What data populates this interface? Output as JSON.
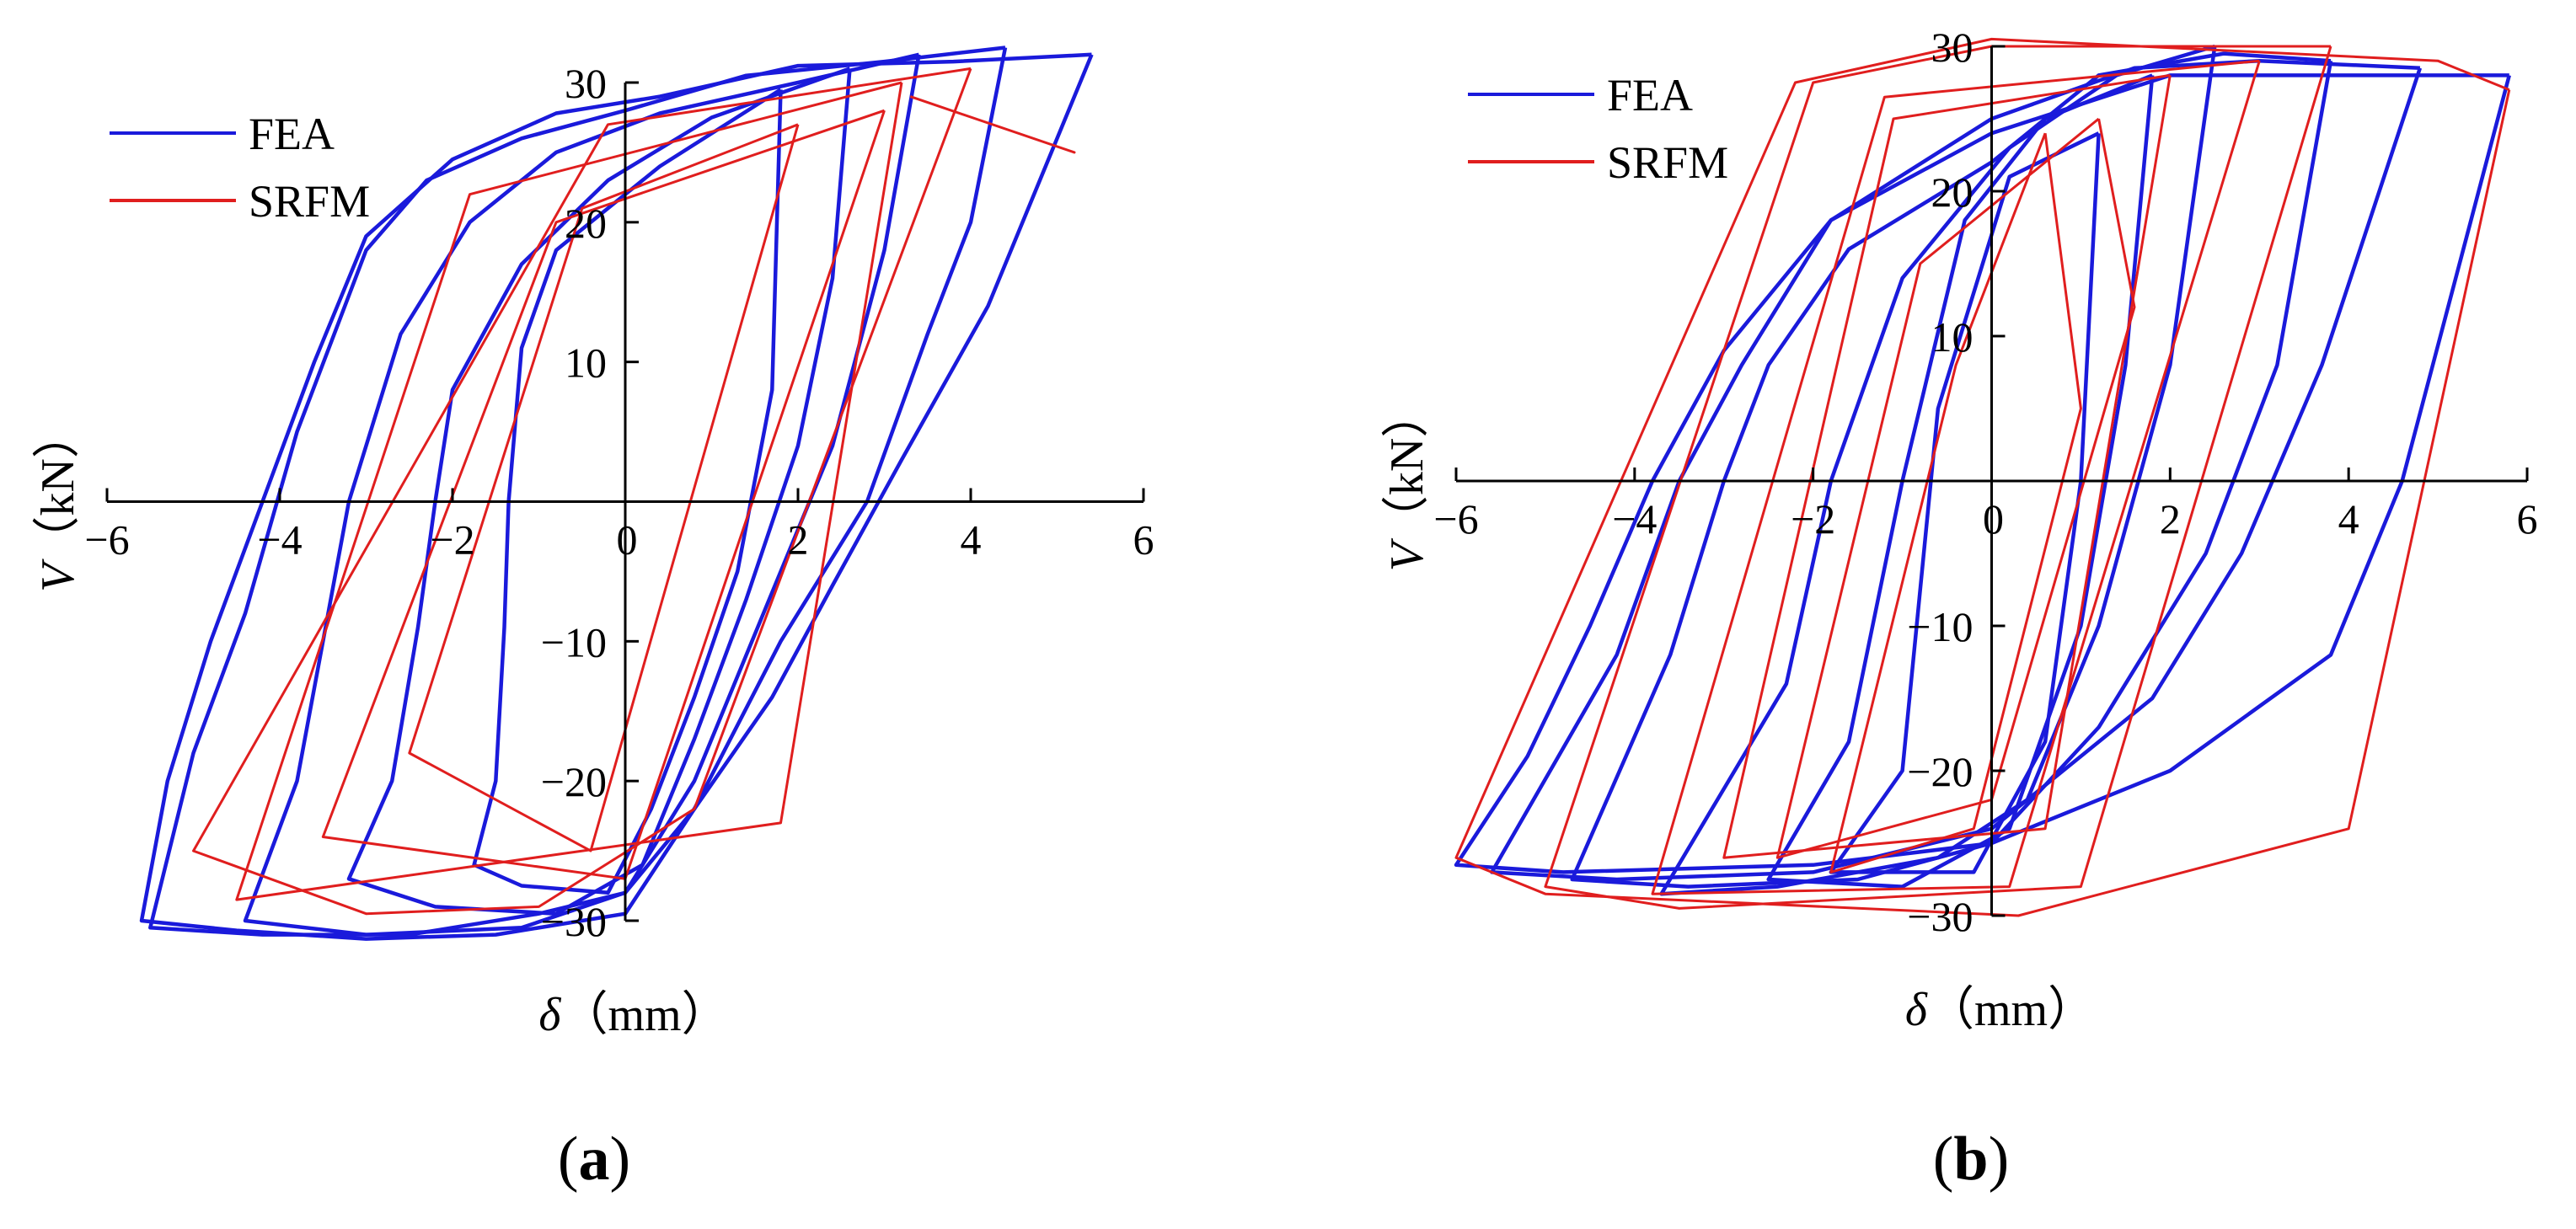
{
  "colors": {
    "FEA": "#1a1adb",
    "SRFM": "#e01e1e",
    "axis": "#000000"
  },
  "chart_data": [
    {
      "type": "line",
      "panel": "(a)",
      "panel_letter": "a",
      "xlabel_symbol": "δ",
      "xlabel_unit": "（mm）",
      "ylabel_symbol": "V",
      "ylabel_unit": "（kN）",
      "xlim": [
        -6,
        6
      ],
      "ylim": [
        -30,
        30
      ],
      "xticks": [
        -6,
        -4,
        -2,
        0,
        2,
        4,
        6
      ],
      "yticks": [
        -30,
        -20,
        -10,
        0,
        10,
        20,
        30
      ],
      "grid": false,
      "legend_position": "top-left",
      "legend": [
        "FEA",
        "SRFM"
      ],
      "series": [
        {
          "name": "FEA",
          "loops": [
            [
              [
                1.8,
                29.5
              ],
              [
                0.4,
                24
              ],
              [
                -0.8,
                18
              ],
              [
                -1.2,
                11
              ],
              [
                -1.35,
                0
              ],
              [
                -1.4,
                -9
              ],
              [
                -1.5,
                -20
              ],
              [
                -1.75,
                -26
              ],
              [
                -1.2,
                -27.5
              ],
              [
                -0.2,
                -28
              ],
              [
                0.3,
                -22
              ],
              [
                0.8,
                -14
              ],
              [
                1.3,
                -5
              ],
              [
                1.7,
                8
              ],
              [
                1.8,
                29.5
              ]
            ],
            [
              [
                2.6,
                31
              ],
              [
                1.0,
                27.5
              ],
              [
                -0.2,
                23
              ],
              [
                -1.2,
                17
              ],
              [
                -2.0,
                8
              ],
              [
                -2.2,
                0
              ],
              [
                -2.4,
                -9
              ],
              [
                -2.7,
                -20
              ],
              [
                -3.2,
                -27
              ],
              [
                -2.2,
                -29
              ],
              [
                -0.8,
                -29.5
              ],
              [
                0.2,
                -26
              ],
              [
                0.8,
                -17
              ],
              [
                1.4,
                -7
              ],
              [
                2.0,
                4
              ],
              [
                2.4,
                16
              ],
              [
                2.6,
                31
              ]
            ],
            [
              [
                3.4,
                32
              ],
              [
                2.0,
                30
              ],
              [
                0.4,
                27.8
              ],
              [
                -0.8,
                25
              ],
              [
                -1.8,
                20
              ],
              [
                -2.6,
                12
              ],
              [
                -3.2,
                0
              ],
              [
                -3.5,
                -10
              ],
              [
                -3.8,
                -20
              ],
              [
                -4.4,
                -30
              ],
              [
                -3.0,
                -31
              ],
              [
                -1.2,
                -30.5
              ],
              [
                0,
                -28
              ],
              [
                0.8,
                -20
              ],
              [
                1.6,
                -8
              ],
              [
                2.4,
                4
              ],
              [
                3.0,
                18
              ],
              [
                3.4,
                32
              ]
            ],
            [
              [
                4.4,
                32.5
              ],
              [
                3.0,
                31.5
              ],
              [
                1.4,
                30.5
              ],
              [
                0,
                28
              ],
              [
                -1.2,
                26
              ],
              [
                -2.3,
                23
              ],
              [
                -3.0,
                18
              ],
              [
                -3.8,
                5
              ],
              [
                -4.4,
                -8
              ],
              [
                -5.0,
                -18
              ],
              [
                -5.5,
                -30.5
              ],
              [
                -4.2,
                -31
              ],
              [
                -2.5,
                -31
              ],
              [
                -1.0,
                -29.5
              ],
              [
                0,
                -28
              ],
              [
                0.8,
                -22
              ],
              [
                1.8,
                -10
              ],
              [
                2.8,
                0
              ],
              [
                3.5,
                12
              ],
              [
                4.0,
                20
              ],
              [
                4.4,
                32.5
              ]
            ],
            [
              [
                5.4,
                32
              ],
              [
                3.8,
                31.5
              ],
              [
                2.0,
                31.2
              ],
              [
                0.4,
                29
              ],
              [
                -0.8,
                27.8
              ],
              [
                -2.0,
                24.5
              ],
              [
                -3.0,
                19
              ],
              [
                -3.6,
                10
              ],
              [
                -4.2,
                0
              ],
              [
                -4.8,
                -10
              ],
              [
                -5.3,
                -20
              ],
              [
                -5.6,
                -30
              ],
              [
                -4.5,
                -30.7
              ],
              [
                -3.0,
                -31.3
              ],
              [
                -1.5,
                -31
              ],
              [
                0,
                -29.5
              ],
              [
                0.8,
                -22
              ],
              [
                1.7,
                -14
              ],
              [
                2.4,
                -6
              ],
              [
                3.2,
                3
              ],
              [
                4.2,
                14
              ],
              [
                5.4,
                32
              ]
            ]
          ]
        },
        {
          "name": "SRFM",
          "loops": [
            [
              [
                2.0,
                27
              ],
              [
                -0.5,
                21
              ],
              [
                -2.5,
                -18
              ],
              [
                -0.4,
                -25
              ],
              [
                2.0,
                27
              ]
            ],
            [
              [
                3.0,
                28
              ],
              [
                -0.8,
                20
              ],
              [
                -3.5,
                -24
              ],
              [
                0,
                -27
              ],
              [
                3.0,
                28
              ]
            ],
            [
              [
                3.2,
                30
              ],
              [
                -1.8,
                22
              ],
              [
                -4.5,
                -28.5
              ],
              [
                1.8,
                -23
              ],
              [
                3.2,
                30
              ]
            ],
            [
              [
                4.0,
                31
              ],
              [
                -0.2,
                27
              ],
              [
                -5.0,
                -25
              ],
              [
                -3.0,
                -29.5
              ],
              [
                -1.0,
                -29
              ],
              [
                0.8,
                -22
              ],
              [
                4.0,
                31
              ]
            ],
            [
              [
                3.3,
                29
              ],
              [
                5.2,
                25
              ],
              [
                3.3,
                29
              ]
            ]
          ]
        }
      ]
    },
    {
      "type": "line",
      "panel": "(b)",
      "panel_letter": "b",
      "xlabel_symbol": "δ",
      "xlabel_unit": "（mm）",
      "ylabel_symbol": "V",
      "ylabel_unit": "（kN）",
      "xlim": [
        -6,
        6
      ],
      "ylim": [
        -30,
        30
      ],
      "xticks": [
        -6,
        -4,
        -2,
        0,
        2,
        4,
        6
      ],
      "yticks": [
        -30,
        -20,
        -10,
        0,
        10,
        20,
        30
      ],
      "grid": false,
      "legend_position": "top-left",
      "legend": [
        "FEA",
        "SRFM"
      ],
      "series": [
        {
          "name": "FEA",
          "loops": [
            [
              [
                1.2,
                24
              ],
              [
                0.2,
                21
              ],
              [
                -0.6,
                5
              ],
              [
                -1.0,
                -20
              ],
              [
                -1.8,
                -27
              ],
              [
                -0.2,
                -27
              ],
              [
                0.6,
                -18
              ],
              [
                1.0,
                0
              ],
              [
                1.2,
                24
              ]
            ],
            [
              [
                1.8,
                28
              ],
              [
                0.6,
                25
              ],
              [
                -0.3,
                18
              ],
              [
                -1.0,
                0
              ],
              [
                -1.6,
                -18
              ],
              [
                -2.5,
                -27.5
              ],
              [
                -1.0,
                -28
              ],
              [
                0.2,
                -24
              ],
              [
                1.0,
                -10
              ],
              [
                1.5,
                8
              ],
              [
                1.8,
                28
              ]
            ],
            [
              [
                2.5,
                30
              ],
              [
                1.4,
                28
              ],
              [
                0.2,
                23
              ],
              [
                -1.0,
                14
              ],
              [
                -1.8,
                0
              ],
              [
                -2.3,
                -14
              ],
              [
                -3.7,
                -28.5
              ],
              [
                -2.4,
                -28
              ],
              [
                -0.6,
                -26
              ],
              [
                0.4,
                -22
              ],
              [
                1.2,
                -10
              ],
              [
                2.0,
                8
              ],
              [
                2.5,
                30
              ]
            ],
            [
              [
                3.8,
                29
              ],
              [
                2.6,
                29.5
              ],
              [
                1.2,
                28
              ],
              [
                0,
                22
              ],
              [
                -1.6,
                16
              ],
              [
                -2.5,
                8
              ],
              [
                -3.0,
                0
              ],
              [
                -3.6,
                -12
              ],
              [
                -4.7,
                -27.5
              ],
              [
                -3.4,
                -28
              ],
              [
                -1.5,
                -27.5
              ],
              [
                0,
                -25
              ],
              [
                1.2,
                -17
              ],
              [
                2.4,
                -5
              ],
              [
                3.2,
                8
              ],
              [
                3.8,
                29
              ]
            ],
            [
              [
                4.8,
                28.5
              ],
              [
                3.0,
                29
              ],
              [
                1.6,
                28.5
              ],
              [
                0,
                25
              ],
              [
                -1.8,
                18
              ],
              [
                -2.8,
                8
              ],
              [
                -3.5,
                0
              ],
              [
                -4.2,
                -12
              ],
              [
                -5.6,
                -27
              ],
              [
                -4.2,
                -27.5
              ],
              [
                -2.0,
                -27
              ],
              [
                0,
                -24
              ],
              [
                1.8,
                -15
              ],
              [
                2.8,
                -5
              ],
              [
                3.7,
                8
              ],
              [
                4.8,
                28.5
              ]
            ],
            [
              [
                5.8,
                28
              ],
              [
                4.0,
                28
              ],
              [
                2.0,
                28
              ],
              [
                0,
                24
              ],
              [
                -1.8,
                18
              ],
              [
                -3.0,
                9
              ],
              [
                -3.8,
                0
              ],
              [
                -4.5,
                -10
              ],
              [
                -5.2,
                -19
              ],
              [
                -6.0,
                -26.5
              ],
              [
                -4.8,
                -27
              ],
              [
                -2.0,
                -26.5
              ],
              [
                0,
                -25
              ],
              [
                2.0,
                -20
              ],
              [
                3.8,
                -12
              ],
              [
                4.6,
                0
              ],
              [
                5.8,
                28
              ]
            ]
          ]
        },
        {
          "name": "SRFM",
          "loops": [
            [
              [
                0.6,
                24
              ],
              [
                -0.4,
                8
              ],
              [
                -1.8,
                -27
              ],
              [
                -0.2,
                -24
              ],
              [
                1.0,
                5
              ],
              [
                0.6,
                24
              ]
            ],
            [
              [
                1.2,
                25
              ],
              [
                -0.8,
                15
              ],
              [
                -2.4,
                -26
              ],
              [
                0,
                -22
              ],
              [
                1.6,
                12
              ],
              [
                1.2,
                25
              ]
            ],
            [
              [
                2.0,
                28
              ],
              [
                -1.1,
                25
              ],
              [
                -3.0,
                -26
              ],
              [
                0.6,
                -24
              ],
              [
                2.0,
                28
              ]
            ],
            [
              [
                3.0,
                29
              ],
              [
                -1.2,
                26.5
              ],
              [
                -3.8,
                -28.5
              ],
              [
                0.2,
                -28
              ],
              [
                3.0,
                29
              ]
            ],
            [
              [
                3.8,
                30
              ],
              [
                0,
                30
              ],
              [
                -2.0,
                27.5
              ],
              [
                -5.0,
                -28
              ],
              [
                -3.5,
                -29.5
              ],
              [
                1.0,
                -28
              ],
              [
                3.8,
                30
              ]
            ],
            [
              [
                5.8,
                27
              ],
              [
                5.0,
                29
              ],
              [
                0,
                30.5
              ],
              [
                -2.2,
                27.5
              ],
              [
                -6.0,
                -26
              ],
              [
                -5.0,
                -28.5
              ],
              [
                0.3,
                -30
              ],
              [
                4.0,
                -24
              ],
              [
                5.8,
                27
              ]
            ]
          ]
        }
      ]
    }
  ]
}
